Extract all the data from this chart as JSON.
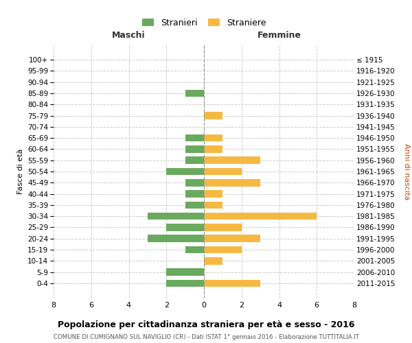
{
  "age_groups": [
    "100+",
    "95-99",
    "90-94",
    "85-89",
    "80-84",
    "75-79",
    "70-74",
    "65-69",
    "60-64",
    "55-59",
    "50-54",
    "45-49",
    "40-44",
    "35-39",
    "30-34",
    "25-29",
    "20-24",
    "15-19",
    "10-14",
    "5-9",
    "0-4"
  ],
  "birth_years": [
    "≤ 1915",
    "1916-1920",
    "1921-1925",
    "1926-1930",
    "1931-1935",
    "1936-1940",
    "1941-1945",
    "1946-1950",
    "1951-1955",
    "1956-1960",
    "1961-1965",
    "1966-1970",
    "1971-1975",
    "1976-1980",
    "1981-1985",
    "1986-1990",
    "1991-1995",
    "1996-2000",
    "2001-2005",
    "2006-2010",
    "2011-2015"
  ],
  "maschi": [
    0,
    0,
    0,
    1,
    0,
    0,
    0,
    1,
    1,
    1,
    2,
    1,
    1,
    1,
    3,
    2,
    3,
    1,
    0,
    2,
    2
  ],
  "femmine": [
    0,
    0,
    0,
    0,
    0,
    1,
    0,
    1,
    1,
    3,
    2,
    3,
    1,
    1,
    6,
    2,
    3,
    2,
    1,
    0,
    3
  ],
  "color_maschi": "#6aaa5e",
  "color_femmine": "#f5b942",
  "title": "Popolazione per cittadinanza straniera per età e sesso - 2016",
  "subtitle": "COMUNE DI CUMIGNANO SUL NAVIGLIO (CR) - Dati ISTAT 1° gennaio 2016 - Elaborazione TUTTITALIA.IT",
  "xlabel_left": "Maschi",
  "xlabel_right": "Femmine",
  "ylabel_left": "Fasce di età",
  "ylabel_right": "Anni di nascita",
  "legend_maschi": "Stranieri",
  "legend_femmine": "Straniere",
  "xlim": 8,
  "background_color": "#ffffff",
  "grid_color": "#cccccc"
}
